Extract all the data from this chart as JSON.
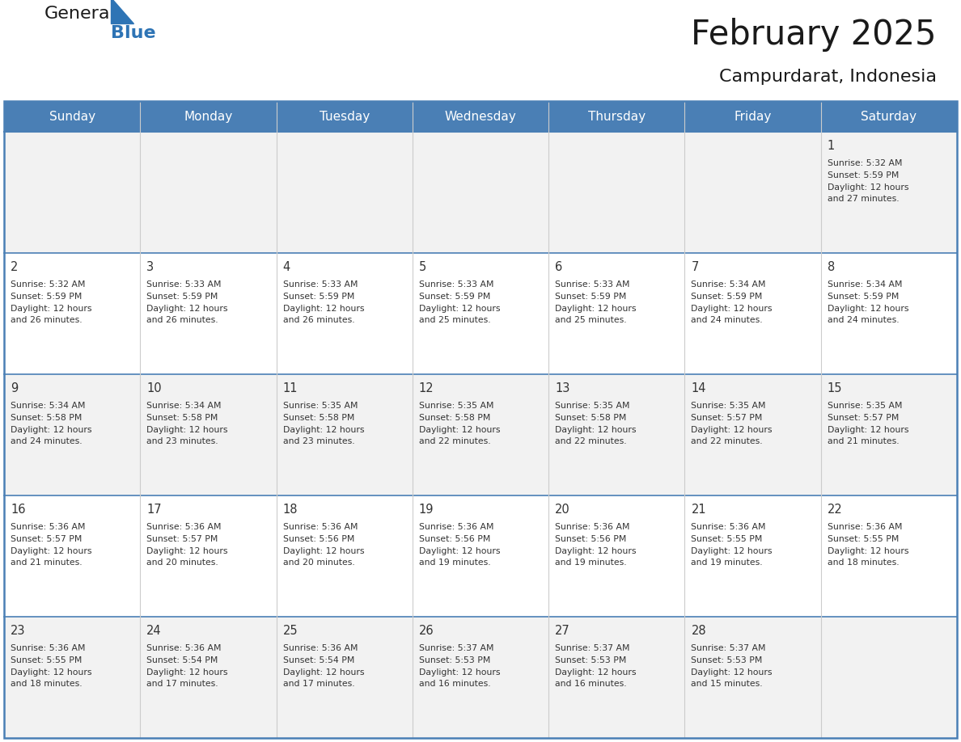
{
  "title": "February 2025",
  "subtitle": "Campurdarat, Indonesia",
  "header_color": "#4a7fb5",
  "header_text_color": "#ffffff",
  "cell_bg_white": "#ffffff",
  "cell_bg_gray": "#f2f2f2",
  "border_color": "#4a7fb5",
  "inner_border_color": "#4a7fb5",
  "day_number_color": "#333333",
  "text_color": "#333333",
  "days_of_week": [
    "Sunday",
    "Monday",
    "Tuesday",
    "Wednesday",
    "Thursday",
    "Friday",
    "Saturday"
  ],
  "calendar_data": [
    [
      null,
      null,
      null,
      null,
      null,
      null,
      {
        "day": "1",
        "sunrise": "5:32 AM",
        "sunset": "5:59 PM",
        "daylight1": "Daylight: 12 hours",
        "daylight2": "and 27 minutes."
      }
    ],
    [
      {
        "day": "2",
        "sunrise": "5:32 AM",
        "sunset": "5:59 PM",
        "daylight1": "Daylight: 12 hours",
        "daylight2": "and 26 minutes."
      },
      {
        "day": "3",
        "sunrise": "5:33 AM",
        "sunset": "5:59 PM",
        "daylight1": "Daylight: 12 hours",
        "daylight2": "and 26 minutes."
      },
      {
        "day": "4",
        "sunrise": "5:33 AM",
        "sunset": "5:59 PM",
        "daylight1": "Daylight: 12 hours",
        "daylight2": "and 26 minutes."
      },
      {
        "day": "5",
        "sunrise": "5:33 AM",
        "sunset": "5:59 PM",
        "daylight1": "Daylight: 12 hours",
        "daylight2": "and 25 minutes."
      },
      {
        "day": "6",
        "sunrise": "5:33 AM",
        "sunset": "5:59 PM",
        "daylight1": "Daylight: 12 hours",
        "daylight2": "and 25 minutes."
      },
      {
        "day": "7",
        "sunrise": "5:34 AM",
        "sunset": "5:59 PM",
        "daylight1": "Daylight: 12 hours",
        "daylight2": "and 24 minutes."
      },
      {
        "day": "8",
        "sunrise": "5:34 AM",
        "sunset": "5:59 PM",
        "daylight1": "Daylight: 12 hours",
        "daylight2": "and 24 minutes."
      }
    ],
    [
      {
        "day": "9",
        "sunrise": "5:34 AM",
        "sunset": "5:58 PM",
        "daylight1": "Daylight: 12 hours",
        "daylight2": "and 24 minutes."
      },
      {
        "day": "10",
        "sunrise": "5:34 AM",
        "sunset": "5:58 PM",
        "daylight1": "Daylight: 12 hours",
        "daylight2": "and 23 minutes."
      },
      {
        "day": "11",
        "sunrise": "5:35 AM",
        "sunset": "5:58 PM",
        "daylight1": "Daylight: 12 hours",
        "daylight2": "and 23 minutes."
      },
      {
        "day": "12",
        "sunrise": "5:35 AM",
        "sunset": "5:58 PM",
        "daylight1": "Daylight: 12 hours",
        "daylight2": "and 22 minutes."
      },
      {
        "day": "13",
        "sunrise": "5:35 AM",
        "sunset": "5:58 PM",
        "daylight1": "Daylight: 12 hours",
        "daylight2": "and 22 minutes."
      },
      {
        "day": "14",
        "sunrise": "5:35 AM",
        "sunset": "5:57 PM",
        "daylight1": "Daylight: 12 hours",
        "daylight2": "and 22 minutes."
      },
      {
        "day": "15",
        "sunrise": "5:35 AM",
        "sunset": "5:57 PM",
        "daylight1": "Daylight: 12 hours",
        "daylight2": "and 21 minutes."
      }
    ],
    [
      {
        "day": "16",
        "sunrise": "5:36 AM",
        "sunset": "5:57 PM",
        "daylight1": "Daylight: 12 hours",
        "daylight2": "and 21 minutes."
      },
      {
        "day": "17",
        "sunrise": "5:36 AM",
        "sunset": "5:57 PM",
        "daylight1": "Daylight: 12 hours",
        "daylight2": "and 20 minutes."
      },
      {
        "day": "18",
        "sunrise": "5:36 AM",
        "sunset": "5:56 PM",
        "daylight1": "Daylight: 12 hours",
        "daylight2": "and 20 minutes."
      },
      {
        "day": "19",
        "sunrise": "5:36 AM",
        "sunset": "5:56 PM",
        "daylight1": "Daylight: 12 hours",
        "daylight2": "and 19 minutes."
      },
      {
        "day": "20",
        "sunrise": "5:36 AM",
        "sunset": "5:56 PM",
        "daylight1": "Daylight: 12 hours",
        "daylight2": "and 19 minutes."
      },
      {
        "day": "21",
        "sunrise": "5:36 AM",
        "sunset": "5:55 PM",
        "daylight1": "Daylight: 12 hours",
        "daylight2": "and 19 minutes."
      },
      {
        "day": "22",
        "sunrise": "5:36 AM",
        "sunset": "5:55 PM",
        "daylight1": "Daylight: 12 hours",
        "daylight2": "and 18 minutes."
      }
    ],
    [
      {
        "day": "23",
        "sunrise": "5:36 AM",
        "sunset": "5:55 PM",
        "daylight1": "Daylight: 12 hours",
        "daylight2": "and 18 minutes."
      },
      {
        "day": "24",
        "sunrise": "5:36 AM",
        "sunset": "5:54 PM",
        "daylight1": "Daylight: 12 hours",
        "daylight2": "and 17 minutes."
      },
      {
        "day": "25",
        "sunrise": "5:36 AM",
        "sunset": "5:54 PM",
        "daylight1": "Daylight: 12 hours",
        "daylight2": "and 17 minutes."
      },
      {
        "day": "26",
        "sunrise": "5:37 AM",
        "sunset": "5:53 PM",
        "daylight1": "Daylight: 12 hours",
        "daylight2": "and 16 minutes."
      },
      {
        "day": "27",
        "sunrise": "5:37 AM",
        "sunset": "5:53 PM",
        "daylight1": "Daylight: 12 hours",
        "daylight2": "and 16 minutes."
      },
      {
        "day": "28",
        "sunrise": "5:37 AM",
        "sunset": "5:53 PM",
        "daylight1": "Daylight: 12 hours",
        "daylight2": "and 15 minutes."
      },
      null
    ]
  ]
}
